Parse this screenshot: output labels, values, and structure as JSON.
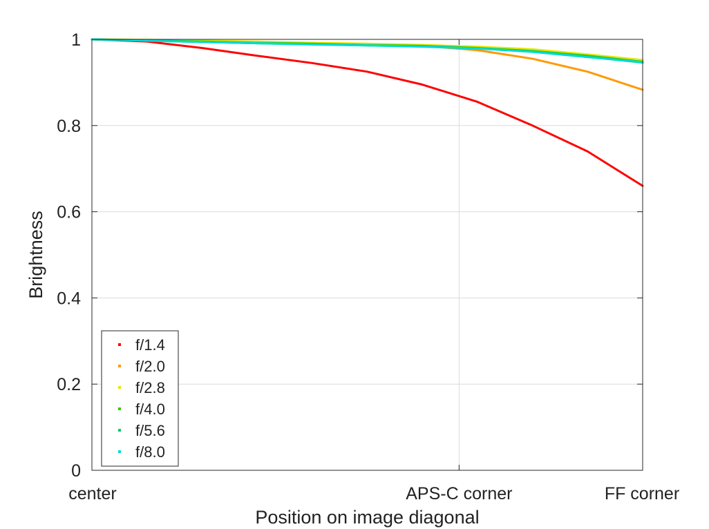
{
  "chart_data": {
    "type": "line",
    "title": "",
    "xlabel": "Position on image diagonal",
    "ylabel": "Brightness",
    "xlim": [
      0,
      1
    ],
    "ylim": [
      0,
      1
    ],
    "x_ticks": [
      {
        "value": 0,
        "label": "center"
      },
      {
        "value": 0.6667,
        "label": "APS-C corner"
      },
      {
        "value": 1,
        "label": "FF corner"
      }
    ],
    "y_ticks": [
      {
        "value": 0,
        "label": "0"
      },
      {
        "value": 0.2,
        "label": "0.2"
      },
      {
        "value": 0.4,
        "label": "0.4"
      },
      {
        "value": 0.6,
        "label": "0.6"
      },
      {
        "value": 0.8,
        "label": "0.8"
      },
      {
        "value": 1,
        "label": "1"
      }
    ],
    "grid": true,
    "legend_position": "bottom-left",
    "x": [
      0,
      0.1,
      0.2,
      0.3,
      0.4,
      0.5,
      0.6,
      0.7,
      0.8,
      0.9,
      1.0
    ],
    "series": [
      {
        "name": "f/1.4",
        "color": "#ff0000",
        "values": [
          1.0,
          0.995,
          0.98,
          0.962,
          0.945,
          0.925,
          0.895,
          0.855,
          0.8,
          0.74,
          0.66
        ]
      },
      {
        "name": "f/2.0",
        "color": "#ff9900",
        "values": [
          1.0,
          0.998,
          0.995,
          0.992,
          0.99,
          0.987,
          0.985,
          0.975,
          0.955,
          0.925,
          0.883
        ]
      },
      {
        "name": "f/2.8",
        "color": "#e6e600",
        "values": [
          1.0,
          0.999,
          0.997,
          0.995,
          0.992,
          0.99,
          0.987,
          0.983,
          0.977,
          0.965,
          0.952
        ]
      },
      {
        "name": "f/4.0",
        "color": "#33cc00",
        "values": [
          1.0,
          0.998,
          0.995,
          0.992,
          0.99,
          0.987,
          0.985,
          0.98,
          0.973,
          0.962,
          0.948
        ]
      },
      {
        "name": "f/5.6",
        "color": "#00cc66",
        "values": [
          1.0,
          0.997,
          0.994,
          0.991,
          0.989,
          0.986,
          0.984,
          0.979,
          0.972,
          0.96,
          0.946
        ]
      },
      {
        "name": "f/8.0",
        "color": "#00d9d9",
        "values": [
          1.0,
          0.997,
          0.994,
          0.991,
          0.988,
          0.986,
          0.983,
          0.979,
          0.971,
          0.959,
          0.947
        ]
      }
    ]
  }
}
